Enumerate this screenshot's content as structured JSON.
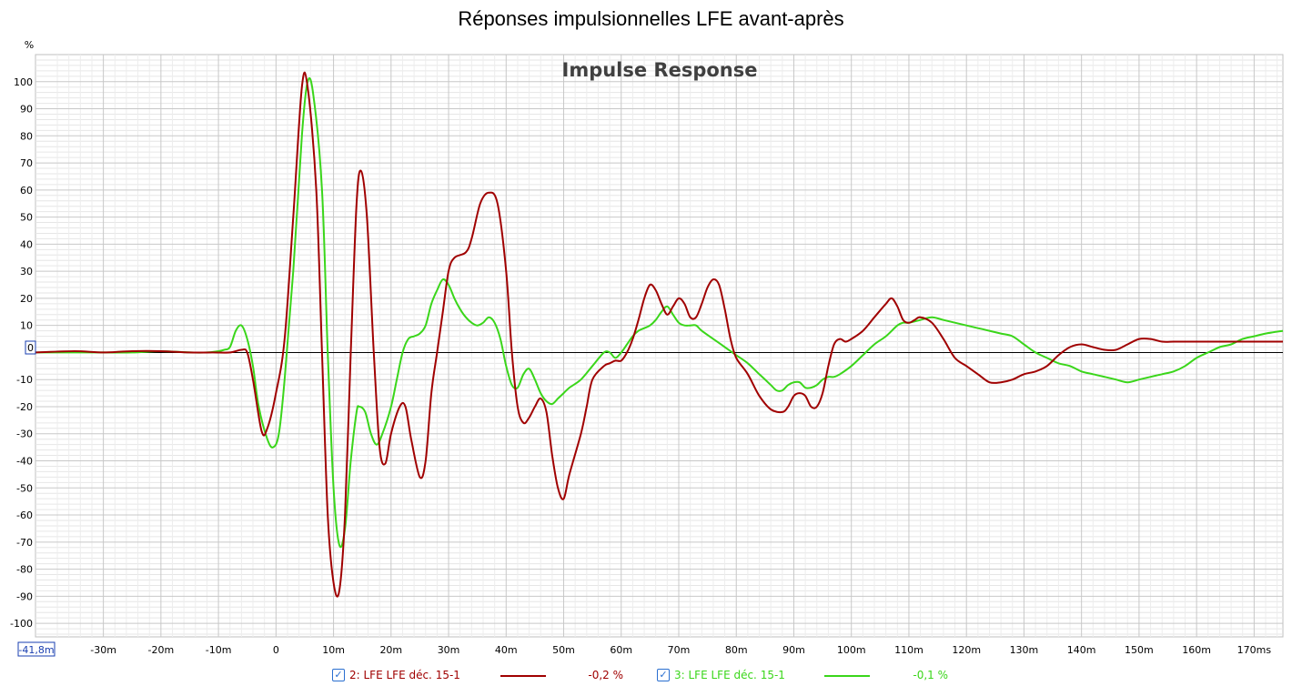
{
  "title": "Réponses impulsionnelles LFE avant-après",
  "chart_data": {
    "type": "line",
    "title": "Impulse Response",
    "ylabel": "%",
    "xlim": [
      -41.8,
      175
    ],
    "ylim": [
      -105,
      110
    ],
    "x_ticks": [
      -30,
      -20,
      -10,
      0,
      10,
      20,
      30,
      40,
      50,
      60,
      70,
      80,
      90,
      100,
      110,
      120,
      130,
      140,
      150,
      160,
      170
    ],
    "x_tick_labels": [
      "-30m",
      "-20m",
      "-10m",
      "0",
      "10m",
      "20m",
      "30m",
      "40m",
      "50m",
      "60m",
      "70m",
      "80m",
      "90m",
      "100m",
      "110m",
      "120m",
      "130m",
      "140m",
      "150m",
      "160m",
      "170ms"
    ],
    "x_start_label": "-41,8m",
    "y_ticks": [
      -100,
      -90,
      -80,
      -70,
      -60,
      -50,
      -40,
      -30,
      -20,
      -10,
      0,
      10,
      20,
      30,
      40,
      50,
      60,
      70,
      80,
      90,
      100
    ],
    "grid": true,
    "legend_position": "bottom",
    "series": [
      {
        "name": "2: LFE LFE déc. 15-1",
        "value_label": "-0,2 %",
        "color": "#a00000",
        "checked": true,
        "points": [
          [
            -41.8,
            0
          ],
          [
            -35,
            0.5
          ],
          [
            -30,
            0
          ],
          [
            -25,
            0.5
          ],
          [
            -20,
            0.5
          ],
          [
            -15,
            0
          ],
          [
            -11,
            0
          ],
          [
            -8,
            0
          ],
          [
            -6,
            1
          ],
          [
            -5,
            0
          ],
          [
            -4,
            -10
          ],
          [
            -2.5,
            -29
          ],
          [
            -1.5,
            -28
          ],
          [
            0,
            -15
          ],
          [
            1.5,
            5
          ],
          [
            3,
            50
          ],
          [
            4.5,
            98
          ],
          [
            5.5,
            98
          ],
          [
            7,
            60
          ],
          [
            8,
            0
          ],
          [
            9,
            -60
          ],
          [
            10,
            -85
          ],
          [
            11,
            -88
          ],
          [
            12,
            -60
          ],
          [
            13,
            0
          ],
          [
            14,
            55
          ],
          [
            14.8,
            67
          ],
          [
            15.8,
            50
          ],
          [
            17,
            0
          ],
          [
            18,
            -35
          ],
          [
            19,
            -41
          ],
          [
            20,
            -30
          ],
          [
            21.5,
            -20
          ],
          [
            22.5,
            -20
          ],
          [
            23.5,
            -32
          ],
          [
            25,
            -46
          ],
          [
            26,
            -40
          ],
          [
            27,
            -15
          ],
          [
            28,
            0
          ],
          [
            29,
            15
          ],
          [
            30,
            30
          ],
          [
            31,
            35
          ],
          [
            33,
            37
          ],
          [
            34,
            42
          ],
          [
            35.5,
            55
          ],
          [
            37,
            59
          ],
          [
            38.5,
            55
          ],
          [
            40,
            30
          ],
          [
            41,
            0
          ],
          [
            42,
            -20
          ],
          [
            43,
            -26
          ],
          [
            44,
            -24
          ],
          [
            45,
            -20
          ],
          [
            46,
            -17
          ],
          [
            47,
            -22
          ],
          [
            48,
            -38
          ],
          [
            49,
            -50
          ],
          [
            50,
            -54
          ],
          [
            51,
            -45
          ],
          [
            53,
            -30
          ],
          [
            54,
            -20
          ],
          [
            55,
            -10
          ],
          [
            57,
            -5
          ],
          [
            58,
            -4
          ],
          [
            59,
            -3
          ],
          [
            60,
            -3
          ],
          [
            61,
            0
          ],
          [
            62,
            5
          ],
          [
            63,
            12
          ],
          [
            64,
            20
          ],
          [
            65,
            25
          ],
          [
            66,
            23
          ],
          [
            67,
            18
          ],
          [
            68,
            14
          ],
          [
            69,
            17
          ],
          [
            70,
            20
          ],
          [
            71,
            18
          ],
          [
            72,
            13
          ],
          [
            73,
            13
          ],
          [
            74,
            18
          ],
          [
            75,
            24
          ],
          [
            76,
            27
          ],
          [
            77,
            25
          ],
          [
            78,
            16
          ],
          [
            79,
            5
          ],
          [
            80,
            -2
          ],
          [
            82,
            -8
          ],
          [
            84,
            -16
          ],
          [
            86,
            -21
          ],
          [
            88,
            -22
          ],
          [
            89,
            -20
          ],
          [
            90,
            -16
          ],
          [
            91,
            -15
          ],
          [
            92,
            -16
          ],
          [
            93,
            -20
          ],
          [
            94,
            -20
          ],
          [
            95,
            -15
          ],
          [
            96,
            -5
          ],
          [
            97,
            3
          ],
          [
            98,
            5
          ],
          [
            99,
            4
          ],
          [
            100,
            5
          ],
          [
            102,
            8
          ],
          [
            104,
            13
          ],
          [
            106,
            18
          ],
          [
            107,
            20
          ],
          [
            108,
            17
          ],
          [
            109,
            12
          ],
          [
            110,
            11
          ],
          [
            111,
            12
          ],
          [
            112,
            13
          ],
          [
            114,
            11
          ],
          [
            116,
            5
          ],
          [
            118,
            -2
          ],
          [
            120,
            -5
          ],
          [
            122,
            -8
          ],
          [
            124,
            -11
          ],
          [
            126,
            -11
          ],
          [
            128,
            -10
          ],
          [
            130,
            -8
          ],
          [
            132,
            -7
          ],
          [
            134,
            -5
          ],
          [
            136,
            -1
          ],
          [
            138,
            2
          ],
          [
            140,
            3
          ],
          [
            142,
            2
          ],
          [
            144,
            1
          ],
          [
            146,
            1
          ],
          [
            148,
            3
          ],
          [
            150,
            5
          ],
          [
            152,
            5
          ],
          [
            154,
            4
          ],
          [
            156,
            4
          ],
          [
            158,
            4
          ],
          [
            160,
            4
          ],
          [
            162,
            4
          ],
          [
            165,
            4
          ],
          [
            170,
            4
          ],
          [
            175,
            4
          ]
        ]
      },
      {
        "name": "3: LFE LFE déc. 15-1",
        "value_label": "-0,1 %",
        "color": "#3ad61a",
        "checked": true,
        "points": [
          [
            -41.8,
            0
          ],
          [
            -35,
            0
          ],
          [
            -30,
            0
          ],
          [
            -25,
            0
          ],
          [
            -20,
            0.5
          ],
          [
            -15,
            0
          ],
          [
            -12,
            0
          ],
          [
            -10,
            0.5
          ],
          [
            -9,
            1
          ],
          [
            -8,
            2
          ],
          [
            -7,
            8
          ],
          [
            -6,
            10
          ],
          [
            -5,
            5
          ],
          [
            -4,
            -5
          ],
          [
            -3,
            -20
          ],
          [
            -1.5,
            -32
          ],
          [
            -0.5,
            -35
          ],
          [
            0.5,
            -30
          ],
          [
            1.5,
            -10
          ],
          [
            3,
            30
          ],
          [
            4.5,
            80
          ],
          [
            5.5,
            100
          ],
          [
            6.5,
            95
          ],
          [
            8,
            60
          ],
          [
            9,
            0
          ],
          [
            10,
            -50
          ],
          [
            11,
            -71
          ],
          [
            12,
            -65
          ],
          [
            13,
            -40
          ],
          [
            14,
            -22
          ],
          [
            14.5,
            -20
          ],
          [
            15.5,
            -22
          ],
          [
            16.5,
            -30
          ],
          [
            17.5,
            -34
          ],
          [
            18.5,
            -30
          ],
          [
            20,
            -20
          ],
          [
            21,
            -10
          ],
          [
            22,
            0
          ],
          [
            23,
            5
          ],
          [
            24,
            6
          ],
          [
            25,
            7
          ],
          [
            26,
            10
          ],
          [
            27,
            18
          ],
          [
            28,
            23
          ],
          [
            29,
            27
          ],
          [
            30,
            25
          ],
          [
            31,
            20
          ],
          [
            32,
            16
          ],
          [
            33,
            13
          ],
          [
            34,
            11
          ],
          [
            35,
            10
          ],
          [
            36,
            11
          ],
          [
            37,
            13
          ],
          [
            38,
            11
          ],
          [
            39,
            5
          ],
          [
            40,
            -5
          ],
          [
            41,
            -12
          ],
          [
            42,
            -13
          ],
          [
            43,
            -8
          ],
          [
            44,
            -6
          ],
          [
            45,
            -10
          ],
          [
            46,
            -15
          ],
          [
            47,
            -18
          ],
          [
            48,
            -19
          ],
          [
            49,
            -17
          ],
          [
            50,
            -15
          ],
          [
            51,
            -13
          ],
          [
            53,
            -10
          ],
          [
            55,
            -5
          ],
          [
            57,
            0
          ],
          [
            58,
            0
          ],
          [
            59,
            -2
          ],
          [
            60,
            0
          ],
          [
            61,
            3
          ],
          [
            62,
            6
          ],
          [
            63,
            8
          ],
          [
            64,
            9
          ],
          [
            65,
            10
          ],
          [
            66,
            12
          ],
          [
            67,
            15
          ],
          [
            68,
            17
          ],
          [
            69,
            14
          ],
          [
            70,
            11
          ],
          [
            71,
            10
          ],
          [
            72,
            10
          ],
          [
            73,
            10
          ],
          [
            74,
            8
          ],
          [
            76,
            5
          ],
          [
            78,
            2
          ],
          [
            80,
            -1
          ],
          [
            82,
            -4
          ],
          [
            84,
            -8
          ],
          [
            86,
            -12
          ],
          [
            87,
            -14
          ],
          [
            88,
            -14
          ],
          [
            89,
            -12
          ],
          [
            90,
            -11
          ],
          [
            91,
            -11
          ],
          [
            92,
            -13
          ],
          [
            93,
            -13
          ],
          [
            94,
            -12
          ],
          [
            95,
            -10
          ],
          [
            96,
            -9
          ],
          [
            97,
            -9
          ],
          [
            98,
            -8
          ],
          [
            100,
            -5
          ],
          [
            102,
            -1
          ],
          [
            104,
            3
          ],
          [
            106,
            6
          ],
          [
            108,
            10
          ],
          [
            109,
            11
          ],
          [
            110,
            11
          ],
          [
            112,
            12
          ],
          [
            114,
            13
          ],
          [
            116,
            12
          ],
          [
            118,
            11
          ],
          [
            120,
            10
          ],
          [
            122,
            9
          ],
          [
            124,
            8
          ],
          [
            126,
            7
          ],
          [
            128,
            6
          ],
          [
            130,
            3
          ],
          [
            132,
            0
          ],
          [
            134,
            -2
          ],
          [
            136,
            -4
          ],
          [
            138,
            -5
          ],
          [
            140,
            -7
          ],
          [
            142,
            -8
          ],
          [
            144,
            -9
          ],
          [
            146,
            -10
          ],
          [
            148,
            -11
          ],
          [
            150,
            -10
          ],
          [
            152,
            -9
          ],
          [
            154,
            -8
          ],
          [
            156,
            -7
          ],
          [
            158,
            -5
          ],
          [
            160,
            -2
          ],
          [
            162,
            0
          ],
          [
            164,
            2
          ],
          [
            166,
            3
          ],
          [
            168,
            5
          ],
          [
            170,
            6
          ],
          [
            172,
            7
          ],
          [
            175,
            8
          ]
        ]
      }
    ]
  }
}
